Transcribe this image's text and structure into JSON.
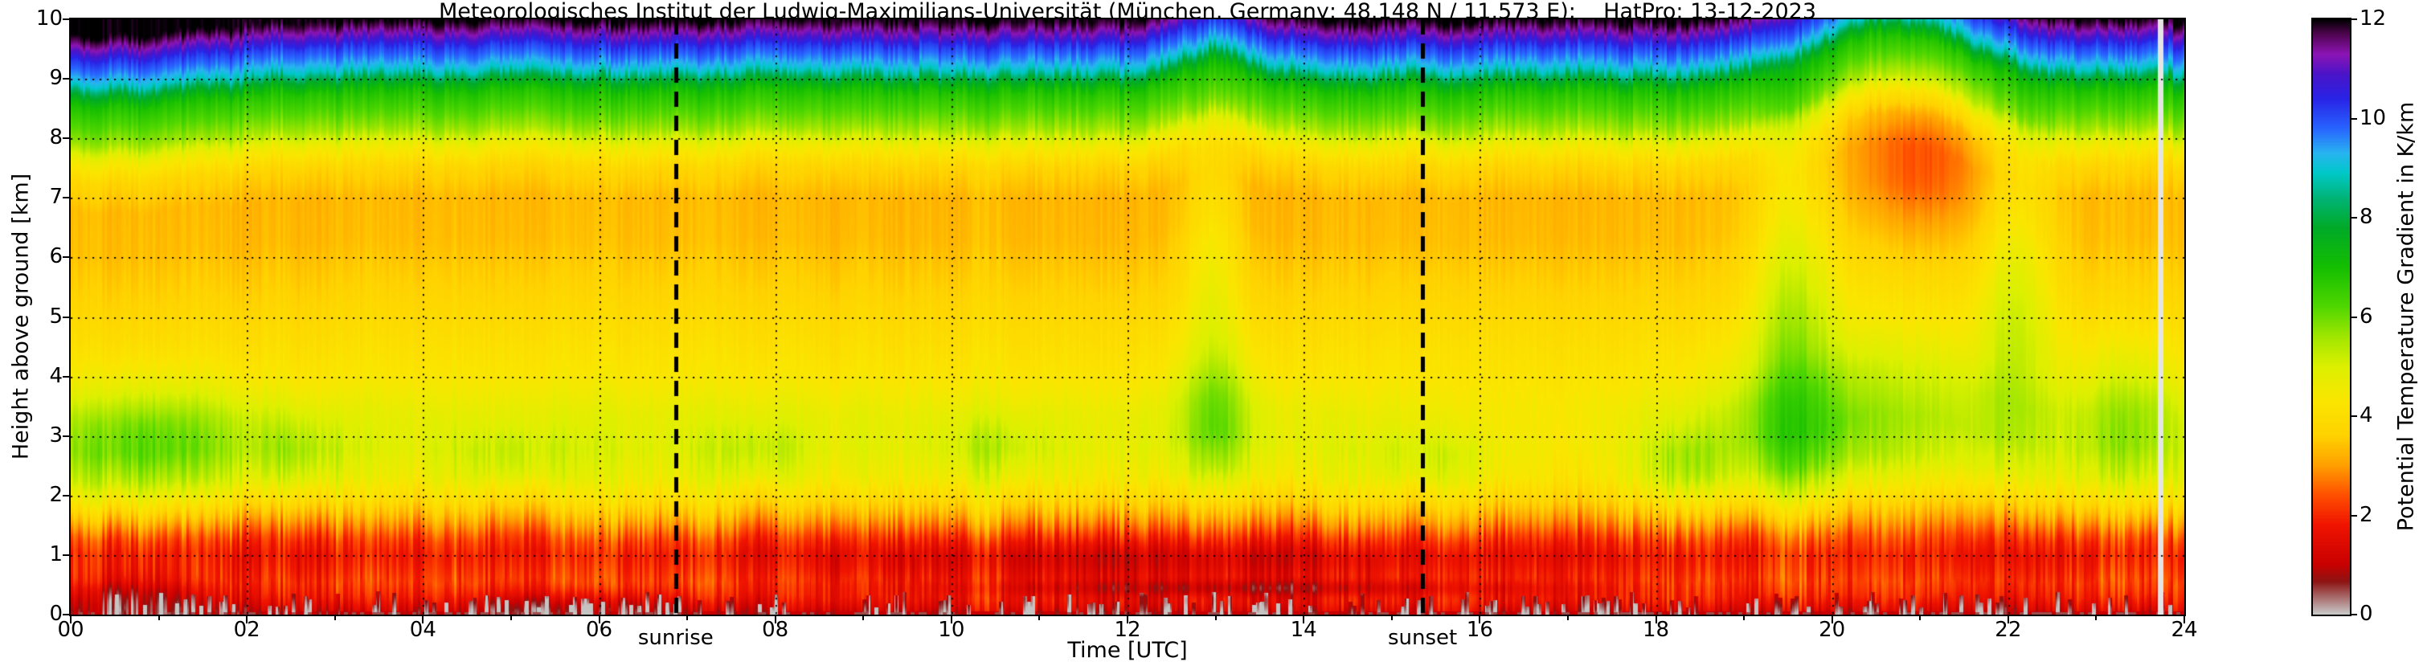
{
  "chart_data": {
    "type": "heatmap",
    "title": "Meteorologisches Institut der Ludwig-Maximilians-Universität (München, Germany; 48.148 N / 11.573 E):    HatPro: 13-12-2023",
    "xlabel": "Time [UTC]",
    "ylabel": "Height above ground [km]",
    "colorbar_label": "Potential Temperature Gradient in K/km",
    "x_range": [
      0,
      24
    ],
    "y_range": [
      0,
      10
    ],
    "value_range": [
      0,
      12
    ],
    "x_unit": "UTC hours",
    "y_unit": "km",
    "value_unit": "K/km",
    "grid": true,
    "x_tick_labels": [
      "00",
      "02",
      "04",
      "06",
      "08",
      "10",
      "12",
      "14",
      "16",
      "18",
      "20",
      "22",
      "24"
    ],
    "y_tick_labels": [
      "0",
      "1",
      "2",
      "3",
      "4",
      "5",
      "6",
      "7",
      "8",
      "9",
      "10"
    ],
    "colorbar_tick_labels": [
      "0",
      "2",
      "4",
      "6",
      "8",
      "10",
      "12"
    ],
    "annotations": [
      {
        "label": "sunrise",
        "t_utc": 6.87
      },
      {
        "label": "sunset",
        "t_utc": 15.35
      }
    ],
    "data_gaps": [
      {
        "t_utc": 23.73,
        "half_width_h": 0.03
      }
    ],
    "colormap": [
      {
        "v": 0.0,
        "c": "#c8c8c8"
      },
      {
        "v": 0.35,
        "c": "#a86868"
      },
      {
        "v": 0.65,
        "c": "#8c1414"
      },
      {
        "v": 1.0,
        "c": "#c80000"
      },
      {
        "v": 1.8,
        "c": "#f01400"
      },
      {
        "v": 2.4,
        "c": "#ff5000"
      },
      {
        "v": 3.0,
        "c": "#ffa000"
      },
      {
        "v": 3.6,
        "c": "#ffd200"
      },
      {
        "v": 4.3,
        "c": "#fae600"
      },
      {
        "v": 5.0,
        "c": "#dcf000"
      },
      {
        "v": 5.6,
        "c": "#a0e600"
      },
      {
        "v": 6.2,
        "c": "#50d700"
      },
      {
        "v": 7.0,
        "c": "#14be00"
      },
      {
        "v": 7.8,
        "c": "#00aa28"
      },
      {
        "v": 8.4,
        "c": "#00b478"
      },
      {
        "v": 8.9,
        "c": "#00c8c8"
      },
      {
        "v": 9.3,
        "c": "#28b4f0"
      },
      {
        "v": 9.8,
        "c": "#2864ff"
      },
      {
        "v": 10.4,
        "c": "#2823e6"
      },
      {
        "v": 10.9,
        "c": "#4b14c8"
      },
      {
        "v": 11.3,
        "c": "#8c14b4"
      },
      {
        "v": 11.7,
        "c": "#500550"
      },
      {
        "v": 12.0,
        "c": "#000000"
      }
    ],
    "model": {
      "seed": 20231213,
      "base_profile": [
        {
          "h": 0.0,
          "v": 1.15
        },
        {
          "h": 0.1,
          "v": 1.5
        },
        {
          "h": 0.3,
          "v": 2.0
        },
        {
          "h": 0.55,
          "v": 2.25
        },
        {
          "h": 0.8,
          "v": 2.0
        },
        {
          "h": 1.0,
          "v": 1.85
        },
        {
          "h": 1.25,
          "v": 2.2
        },
        {
          "h": 1.55,
          "v": 3.0
        },
        {
          "h": 1.9,
          "v": 3.9
        },
        {
          "h": 2.3,
          "v": 4.6
        },
        {
          "h": 2.8,
          "v": 4.9
        },
        {
          "h": 3.4,
          "v": 4.75
        },
        {
          "h": 4.0,
          "v": 4.3
        },
        {
          "h": 4.8,
          "v": 3.95
        },
        {
          "h": 5.6,
          "v": 3.6
        },
        {
          "h": 6.3,
          "v": 3.35
        },
        {
          "h": 7.0,
          "v": 3.3
        },
        {
          "h": 7.5,
          "v": 3.7
        },
        {
          "h": 7.9,
          "v": 4.6
        },
        {
          "h": 8.15,
          "v": 5.6
        },
        {
          "h": 8.5,
          "v": 6.3
        },
        {
          "h": 8.8,
          "v": 6.9
        },
        {
          "h": 9.0,
          "v": 7.9
        },
        {
          "h": 9.15,
          "v": 8.9
        },
        {
          "h": 9.35,
          "v": 9.6
        },
        {
          "h": 9.55,
          "v": 10.2
        },
        {
          "h": 9.7,
          "v": 10.9
        },
        {
          "h": 9.82,
          "v": 11.4
        },
        {
          "h": 9.92,
          "v": 11.8
        },
        {
          "h": 10.0,
          "v": 12.0
        }
      ],
      "lift_events": [
        {
          "t": 13.0,
          "sigma": 0.5,
          "amp": 0.45
        },
        {
          "t": 20.7,
          "sigma": 1.15,
          "amp": 0.95
        },
        {
          "t": 0.3,
          "sigma": 1.6,
          "amp": -0.28
        }
      ],
      "blobs": [
        {
          "t": 0.9,
          "h": 2.9,
          "st": 1.2,
          "sh": 0.95,
          "amp": 1.25
        },
        {
          "t": 0.7,
          "h": 0.28,
          "st": 0.9,
          "sh": 0.4,
          "amp": -1.25
        },
        {
          "t": 2.6,
          "h": 2.7,
          "st": 0.5,
          "sh": 0.6,
          "amp": 0.6
        },
        {
          "t": 5.0,
          "h": 2.6,
          "st": 0.6,
          "sh": 0.5,
          "amp": 0.45
        },
        {
          "t": 5.8,
          "h": 0.12,
          "st": 1.4,
          "sh": 0.28,
          "amp": -0.85
        },
        {
          "t": 7.8,
          "h": 2.7,
          "st": 0.5,
          "sh": 0.5,
          "amp": 0.5
        },
        {
          "t": 10.5,
          "h": 2.8,
          "st": 0.6,
          "sh": 0.5,
          "amp": 0.45
        },
        {
          "t": 12.5,
          "h": 0.85,
          "st": 4.0,
          "sh": 0.4,
          "amp": -0.55
        },
        {
          "t": 13.5,
          "h": 0.44,
          "st": 3.2,
          "sh": 0.14,
          "amp": -0.9
        },
        {
          "t": 13.0,
          "h": 3.2,
          "st": 0.4,
          "sh": 1.2,
          "amp": 1.1
        },
        {
          "t": 12.95,
          "h": 6.0,
          "st": 0.32,
          "sh": 2.2,
          "amp": 0.85
        },
        {
          "t": 15.5,
          "h": 2.6,
          "st": 0.8,
          "sh": 0.5,
          "amp": 0.5
        },
        {
          "t": 16.6,
          "h": 2.9,
          "st": 1.6,
          "sh": 0.9,
          "amp": -0.45
        },
        {
          "t": 18.3,
          "h": 2.5,
          "st": 0.5,
          "sh": 0.6,
          "amp": 0.7
        },
        {
          "t": 19.55,
          "h": 5.0,
          "st": 0.5,
          "sh": 3.4,
          "amp": 1.5
        },
        {
          "t": 20.1,
          "h": 3.0,
          "st": 1.5,
          "sh": 1.2,
          "amp": 0.9
        },
        {
          "t": 21.0,
          "h": 7.6,
          "st": 0.75,
          "sh": 1.4,
          "amp": -0.9
        },
        {
          "t": 22.1,
          "h": 5.5,
          "st": 0.45,
          "sh": 2.6,
          "amp": 1.3
        },
        {
          "t": 23.35,
          "h": 3.3,
          "st": 0.6,
          "sh": 1.3,
          "amp": 0.9
        }
      ],
      "noise": {
        "stripe_amp": 0.45,
        "slow_amp": 0.28,
        "shift_amp": 0.07,
        "dark_prob": 0.33
      }
    }
  }
}
